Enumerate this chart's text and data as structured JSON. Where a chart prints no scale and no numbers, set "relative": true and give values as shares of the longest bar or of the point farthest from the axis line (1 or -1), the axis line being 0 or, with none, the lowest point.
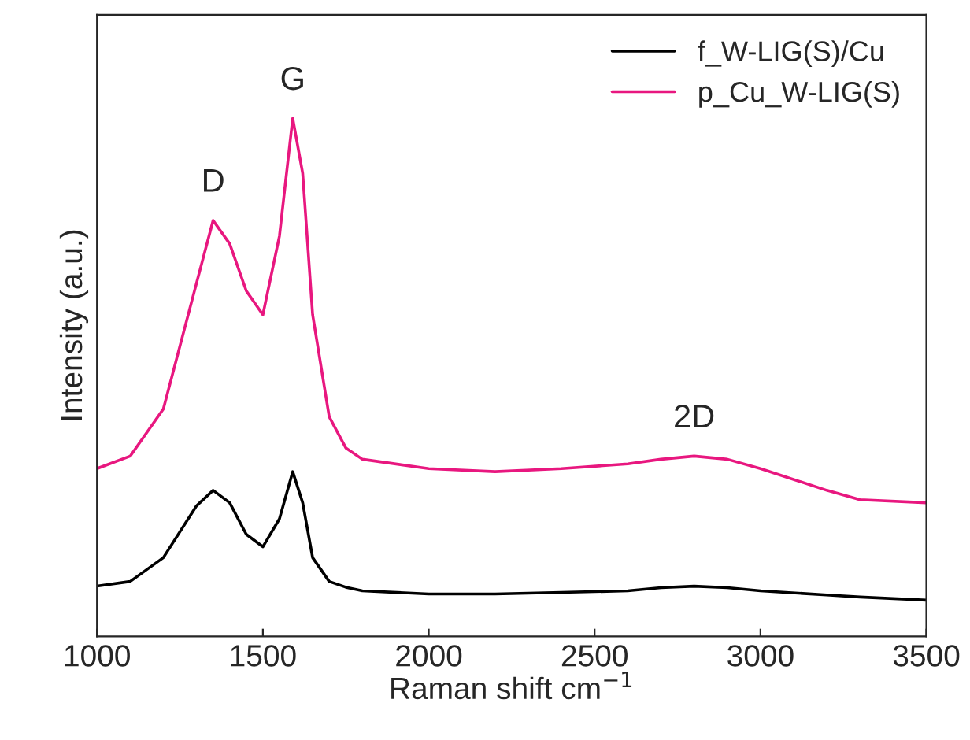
{
  "chart_data": {
    "type": "line",
    "relative": true,
    "xlabel": "Raman shift cm$^{−1}$",
    "ylabel": "Intensity (a.u.)",
    "xlim": [
      1000,
      3500
    ],
    "xticks": [
      1000,
      1500,
      2000,
      2500,
      3000,
      3500
    ],
    "legend": "top right",
    "grid": false,
    "tick_labels": "x",
    "x": [
      1000,
      1100,
      1200,
      1300,
      1350,
      1400,
      1450,
      1500,
      1550,
      1590,
      1620,
      1650,
      1700,
      1750,
      1800,
      2000,
      2200,
      2400,
      2600,
      2700,
      2800,
      2900,
      3000,
      3200,
      3300,
      3500
    ],
    "series": [
      {
        "name": "f_W-LIG(S)/Cu",
        "color": "#000000",
        "values": [
          0.097,
          0.106,
          0.152,
          0.252,
          0.282,
          0.258,
          0.197,
          0.173,
          0.227,
          0.318,
          0.258,
          0.152,
          0.106,
          0.095,
          0.088,
          0.082,
          0.082,
          0.085,
          0.088,
          0.094,
          0.097,
          0.094,
          0.088,
          0.08,
          0.076,
          0.07
        ]
      },
      {
        "name": "p_Cu_W-LIG(S)",
        "color": "#e8177f",
        "values": [
          0.324,
          0.348,
          0.439,
          0.682,
          0.803,
          0.758,
          0.667,
          0.621,
          0.773,
          1,
          0.894,
          0.621,
          0.424,
          0.364,
          0.342,
          0.324,
          0.318,
          0.324,
          0.333,
          0.342,
          0.348,
          0.342,
          0.324,
          0.282,
          0.264,
          0.258
        ]
      }
    ],
    "annotations": [
      {
        "text": "D",
        "x": 1350,
        "y": 0.803
      },
      {
        "text": "G",
        "x": 1590,
        "y": 1
      },
      {
        "text": "2D",
        "x": 2800,
        "y": 0.348
      }
    ]
  }
}
